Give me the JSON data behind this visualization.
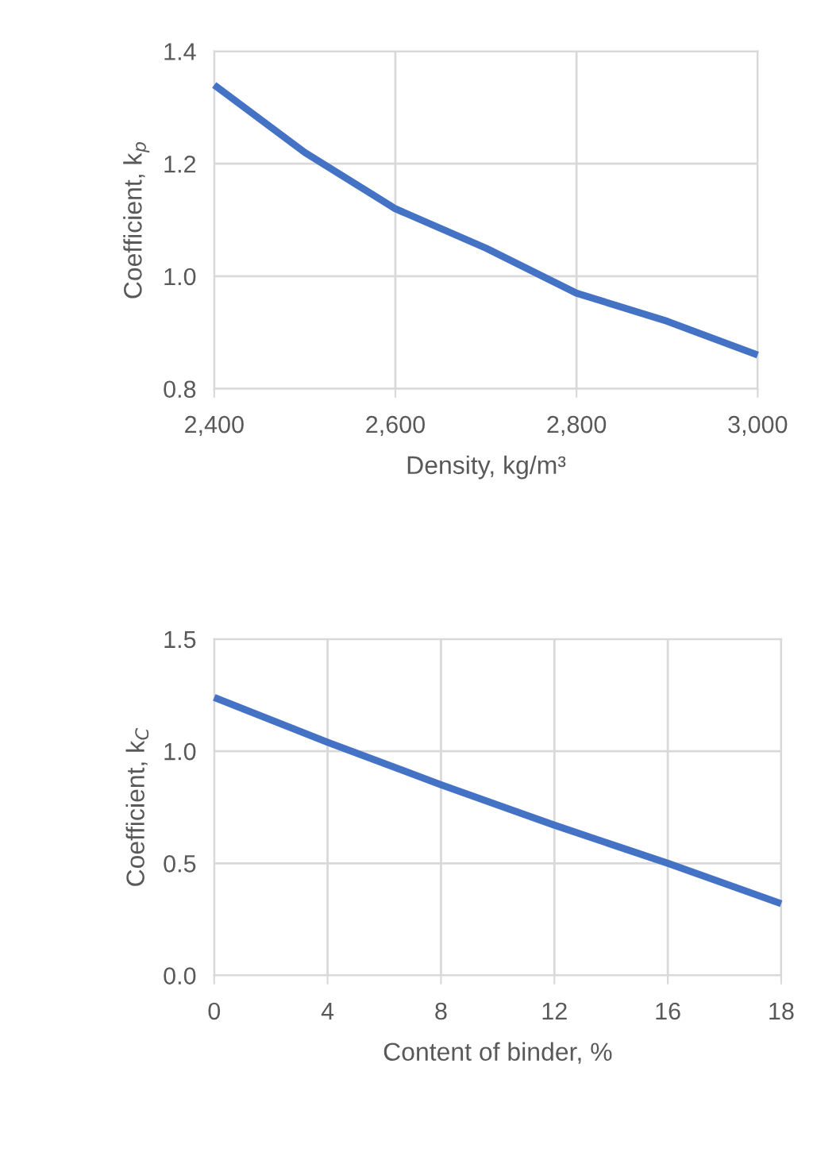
{
  "chart_data": [
    {
      "type": "line",
      "xlabel": "Density, kg/m³",
      "ylabel": "Coefficient, k$_{p}$",
      "x": [
        2400,
        2500,
        2600,
        2700,
        2800,
        2900,
        3000
      ],
      "series": [
        {
          "color": "#4472c4",
          "values": [
            1.34,
            1.22,
            1.12,
            1.05,
            0.97,
            0.92,
            0.86
          ]
        }
      ],
      "xlim": [
        2400,
        3000
      ],
      "xticks": [
        {
          "value": 2400,
          "label": "2,400"
        },
        {
          "value": 2600,
          "label": "2,600"
        },
        {
          "value": 2800,
          "label": "2,800"
        },
        {
          "value": 3000,
          "label": "3,000"
        }
      ],
      "ylim": [
        0.8,
        1.4
      ],
      "yticks": [
        {
          "value": 0.8,
          "label": "0.8"
        },
        {
          "value": 1.0,
          "label": "1.0"
        },
        {
          "value": 1.2,
          "label": "1.2"
        },
        {
          "value": 1.4,
          "label": "1.4"
        }
      ],
      "grid": true,
      "legend": false,
      "marker": "none",
      "line_style": "solid"
    },
    {
      "type": "line",
      "xlabel": "Content of binder, %",
      "ylabel": "Coefficient, k$_{C}$",
      "categories": [
        "0",
        "4",
        "8",
        "12",
        "16",
        "18"
      ],
      "series": [
        {
          "color": "#4472c4",
          "values": [
            1.24,
            1.04,
            0.85,
            0.67,
            0.5,
            0.32
          ]
        }
      ],
      "ylim": [
        0.0,
        1.5
      ],
      "yticks": [
        {
          "value": 0.0,
          "label": "0.0"
        },
        {
          "value": 0.5,
          "label": "0.5"
        },
        {
          "value": 1.0,
          "label": "1.0"
        },
        {
          "value": 1.5,
          "label": "1.5"
        }
      ],
      "grid": true,
      "legend": false,
      "marker": "none",
      "line_style": "solid"
    }
  ]
}
